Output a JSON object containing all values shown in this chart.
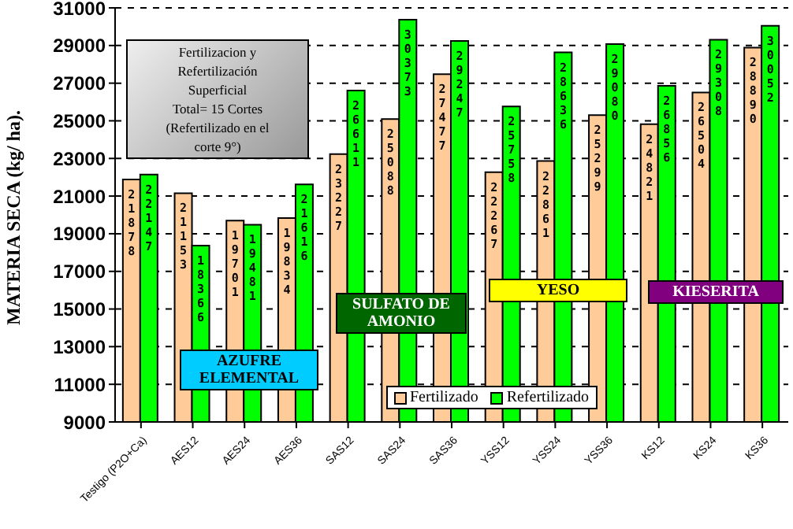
{
  "chart_data": {
    "type": "bar",
    "ylabel": "MATERIA SECA (kg/ ha).",
    "categories": [
      "Testigo (P2O+Ca)",
      "AES12",
      "AES24",
      "AES36",
      "SAS12",
      "SAS24",
      "SAS36",
      "YSS12",
      "YSS24",
      "YSS36",
      "KS12",
      "KS24",
      "KS36"
    ],
    "series": [
      {
        "name": "Fertilizado",
        "color": "#ffcc99",
        "values": [
          21878,
          21153,
          19701,
          19834,
          23227,
          25088,
          27477,
          22267,
          22861,
          25299,
          24821,
          26504,
          28890
        ]
      },
      {
        "name": "Refertilizado",
        "color": "#00ff00",
        "values": [
          22147,
          18366,
          19481,
          21616,
          26611,
          30373,
          29247,
          25758,
          28636,
          29080,
          26856,
          29308,
          30052
        ]
      }
    ],
    "ylim": [
      9000,
      31000
    ],
    "yticks": [
      9000,
      11000,
      13000,
      15000,
      17000,
      19000,
      21000,
      23000,
      25000,
      27000,
      29000,
      31000
    ],
    "grid": "y",
    "legend": "bottom",
    "data_labels": true,
    "annotations": [
      "Fertilizacion y\nRefertilización\nSuperficial\nTotal= 15 Cortes\n(Refertilizado en el\ncorte 9°)",
      "AZUFRE\nELEMENTAL",
      "SULFATO DE\nAMONIO",
      "YESO",
      "KIESERITA"
    ]
  }
}
